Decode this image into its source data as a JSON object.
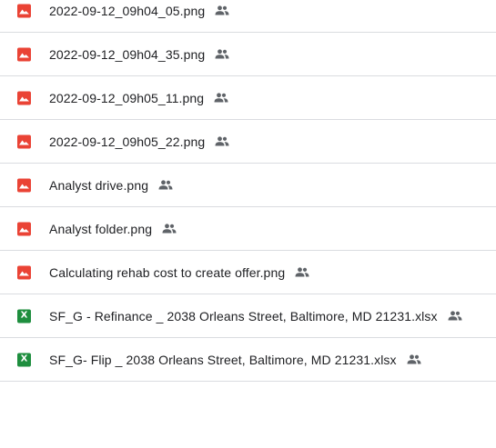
{
  "files": [
    {
      "name": "2022-09-12_09h04_05.png",
      "type": "image",
      "icon": "image-file-icon",
      "shared": true
    },
    {
      "name": "2022-09-12_09h04_35.png",
      "type": "image",
      "icon": "image-file-icon",
      "shared": true
    },
    {
      "name": "2022-09-12_09h05_11.png",
      "type": "image",
      "icon": "image-file-icon",
      "shared": true
    },
    {
      "name": "2022-09-12_09h05_22.png",
      "type": "image",
      "icon": "image-file-icon",
      "shared": true
    },
    {
      "name": "Analyst drive.png",
      "type": "image",
      "icon": "image-file-icon",
      "shared": true
    },
    {
      "name": "Analyst folder.png",
      "type": "image",
      "icon": "image-file-icon",
      "shared": true
    },
    {
      "name": "Calculating rehab cost to create offer.png",
      "type": "image",
      "icon": "image-file-icon",
      "shared": true
    },
    {
      "name": "SF_G - Refinance _ 2038 Orleans Street, Baltimore, MD 21231.xlsx",
      "type": "sheet",
      "icon": "spreadsheet-file-icon",
      "icon_letter": "X",
      "shared": true
    },
    {
      "name": "SF_G- Flip _ 2038 Orleans Street, Baltimore, MD 21231.xlsx",
      "type": "sheet",
      "icon": "spreadsheet-file-icon",
      "icon_letter": "X",
      "shared": true
    }
  ],
  "colors": {
    "image_icon": "#ea4335",
    "sheet_icon": "#1e8e3e",
    "divider": "#dadce0",
    "text": "#202124",
    "shared_icon": "#5f6368"
  }
}
